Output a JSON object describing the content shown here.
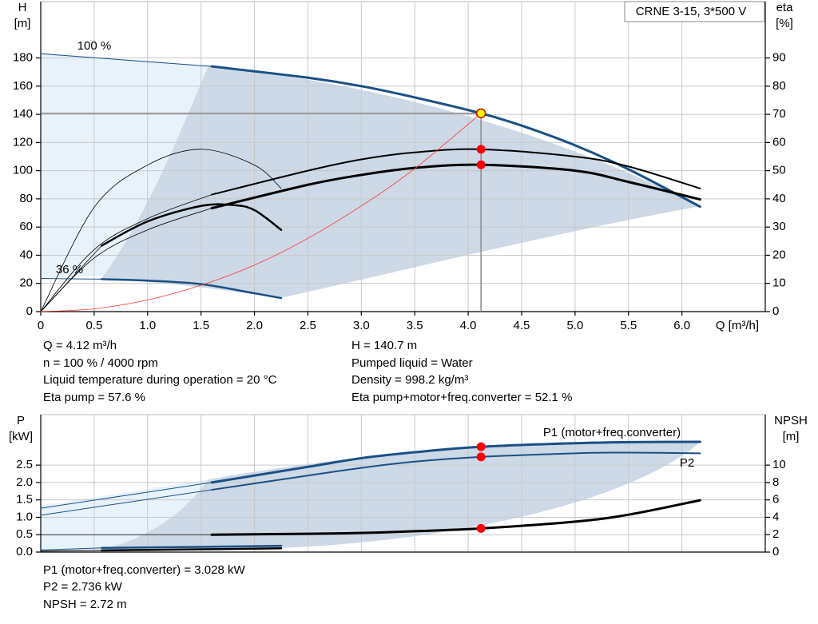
{
  "chart_data": [
    {
      "type": "line",
      "title": "CRNE 3-15, 3*500 V",
      "y_label": "H",
      "y_unit": "[m]",
      "y2_label": "eta",
      "y2_unit": "[%]",
      "x_label": "Q [m³/h]",
      "xlim": [
        0,
        6.78
      ],
      "ylim": [
        0,
        220
      ],
      "y2lim": [
        0,
        110
      ],
      "xticks": [
        0,
        0.5,
        {
          "value": 1,
          "label": "1.0"
        },
        1.5,
        {
          "value": 2,
          "label": "2.0"
        },
        2.5,
        {
          "value": 3,
          "label": "3.0"
        },
        3.5,
        {
          "value": 4,
          "label": "4.0"
        },
        4.5,
        {
          "value": 5,
          "label": "5.0"
        },
        5.5,
        {
          "value": 6,
          "label": "6.0"
        }
      ],
      "yticks": [
        0,
        20,
        40,
        60,
        80,
        100,
        120,
        140,
        160,
        180
      ],
      "y2ticks": [
        0,
        10,
        20,
        30,
        40,
        50,
        60,
        70,
        80,
        90
      ],
      "grid": true,
      "series": [
        {
          "name": "100 %",
          "color": "#1a4f86",
          "width": 1,
          "x": [
            0,
            1.6
          ],
          "values": [
            183,
            174
          ]
        },
        {
          "color": "#1a4f86",
          "width": 3,
          "x": [
            1.6,
            2.5,
            3,
            3.5,
            4.12,
            4.5,
            5,
            5.5,
            6.17
          ],
          "values": [
            174,
            166,
            160,
            152,
            140.7,
            132,
            118,
            101,
            74.5
          ]
        },
        {
          "name": "36 %",
          "color": "#1a4f86",
          "width": 1,
          "x": [
            0,
            0.57
          ],
          "values": [
            23.5,
            23
          ]
        },
        {
          "color": "#1a4f86",
          "width": 2.5,
          "x": [
            0.57,
            1,
            1.5,
            2,
            2.25
          ],
          "values": [
            23,
            22,
            19.5,
            13,
            9.6
          ]
        },
        {
          "color": "#000000",
          "width": 0.8,
          "axis": "y2",
          "x": [
            0,
            0.5,
            1,
            1.6
          ],
          "values": [
            0,
            22,
            33,
            41.5
          ]
        },
        {
          "color": "#000000",
          "width": 2,
          "axis": "y2",
          "x": [
            1.6,
            2.5,
            3,
            3.5,
            4.12,
            5,
            5.5,
            6.17
          ],
          "values": [
            41.5,
            50,
            54,
            56.5,
            57.6,
            55,
            51.5,
            43.7
          ]
        },
        {
          "color": "#000000",
          "width": 0.8,
          "axis": "y2",
          "x": [
            0,
            0.5,
            1,
            1.6
          ],
          "values": [
            0,
            19,
            29,
            36.7
          ]
        },
        {
          "color": "#000000",
          "width": 3,
          "axis": "y2",
          "x": [
            1.6,
            2.5,
            3,
            3.5,
            4.12,
            5,
            5.5,
            6.17
          ],
          "values": [
            36.7,
            45,
            48.5,
            51,
            52.1,
            50,
            46,
            39.8
          ]
        },
        {
          "color": "#000000",
          "width": 0.8,
          "axis": "y2",
          "x": [
            0,
            0.5,
            1,
            1.5,
            2,
            2.25
          ],
          "values": [
            0,
            37,
            52,
            57.6,
            52,
            43.7
          ]
        },
        {
          "color": "#000000",
          "width": 0.8,
          "axis": "y2",
          "x": [
            0,
            0.57
          ],
          "values": [
            0,
            23.4
          ]
        },
        {
          "color": "#000000",
          "width": 2.5,
          "axis": "y2",
          "x": [
            0.57,
            1,
            1.5,
            1.8,
            2,
            2.25
          ],
          "values": [
            23.4,
            32,
            37.5,
            37.8,
            36,
            29
          ]
        },
        {
          "color": "#ff3333",
          "width": 0.8,
          "x": [
            0,
            0.5,
            1,
            1.5,
            2,
            2.5,
            3,
            3.5,
            4.12
          ],
          "values": [
            0,
            2,
            8.3,
            18.7,
            33,
            52,
            75,
            101.5,
            140.7
          ]
        }
      ],
      "duty_point": {
        "x": 4.12,
        "value": 140.7
      },
      "points": [
        {
          "x": 4.12,
          "value": 140.7,
          "color": "#ffff00"
        },
        {
          "x": 4.12,
          "value": 57.6,
          "axis": "y2",
          "color": "#ff0000"
        },
        {
          "x": 4.12,
          "value": 52.1,
          "axis": "y2",
          "color": "#ff0000"
        }
      ],
      "annotations": [
        [
          "Q = 4.12 m³/h",
          "n = 100 % / 4000 rpm",
          "Liquid temperature during operation = 20 °C",
          "Eta pump = 57.6 %"
        ],
        [
          "H = 140.7 m",
          "Pumped liquid = Water",
          "Density = 998.2 kg/m³",
          "Eta pump+motor+freq.converter = 52.1 %"
        ]
      ]
    },
    {
      "type": "line",
      "y_label": "P",
      "y_unit": "[kW]",
      "y2_label": "NPSH",
      "y2_unit": "[m]",
      "xlim": [
        0,
        6.78
      ],
      "ylim": [
        0,
        3.95
      ],
      "y2lim": [
        0,
        15.8
      ],
      "xticks": [
        0,
        0.5,
        1,
        1.5,
        2,
        2.5,
        3,
        3.5,
        4,
        4.5,
        5,
        5.5,
        6
      ],
      "xtick_labels": false,
      "yticks": [
        {
          "value": 0,
          "label": "0.0"
        },
        0.5,
        {
          "value": 1,
          "label": "1.0"
        },
        1.5,
        {
          "value": 2,
          "label": "2.0"
        },
        2.5
      ],
      "y2ticks": [
        0,
        2,
        4,
        6,
        8,
        10
      ],
      "grid": true,
      "series": [
        {
          "color": "#1a4f86",
          "width": 1,
          "x": [
            0,
            1.6
          ],
          "values": [
            1.26,
            2.0
          ]
        },
        {
          "name": "P1 (motor+freq.converter)",
          "color": "#1a4f86",
          "width": 3,
          "x": [
            1.6,
            2.5,
            3,
            3.5,
            4.12,
            5,
            5.5,
            6.17
          ],
          "values": [
            2.0,
            2.45,
            2.7,
            2.87,
            3.028,
            3.13,
            3.16,
            3.17
          ]
        },
        {
          "color": "#1a4f86",
          "width": 1,
          "x": [
            0,
            1.6
          ],
          "values": [
            1.06,
            1.79
          ]
        },
        {
          "name": "P2",
          "color": "#1a4f86",
          "width": 2,
          "x": [
            1.6,
            2.5,
            3,
            3.5,
            4.12,
            5,
            5.5,
            6.17
          ],
          "values": [
            1.79,
            2.2,
            2.42,
            2.6,
            2.736,
            2.84,
            2.86,
            2.84
          ]
        },
        {
          "color": "#1a4f86",
          "width": 1,
          "x": [
            0,
            0.57
          ],
          "values": [
            0.06,
            0.12
          ]
        },
        {
          "color": "#1a4f86",
          "width": 2.5,
          "x": [
            0.57,
            1.5,
            2.25
          ],
          "values": [
            0.12,
            0.15,
            0.18
          ]
        },
        {
          "color": "#000000",
          "width": 1,
          "x": [
            0,
            0.57
          ],
          "values": [
            0.03,
            0.05
          ]
        },
        {
          "color": "#000000",
          "width": 2.5,
          "x": [
            0.57,
            1.5,
            2.25
          ],
          "values": [
            0.05,
            0.08,
            0.11
          ]
        },
        {
          "color": "#000000",
          "width": 0.8,
          "axis": "y2",
          "x": [
            0,
            1.6
          ],
          "values": [
            2.0,
            2.0
          ]
        },
        {
          "color": "#000000",
          "width": 3,
          "axis": "y2",
          "x": [
            1.6,
            2.5,
            3,
            3.5,
            4.12,
            5,
            5.5,
            6.17
          ],
          "values": [
            2.0,
            2.1,
            2.2,
            2.4,
            2.72,
            3.5,
            4.3,
            5.96
          ]
        }
      ],
      "points": [
        {
          "x": 4.12,
          "value": 3.028,
          "color": "#ff0000"
        },
        {
          "x": 4.12,
          "value": 2.736,
          "color": "#ff0000"
        },
        {
          "x": 4.12,
          "value": 2.72,
          "axis": "y2",
          "color": "#ff0000"
        }
      ],
      "annotations": [
        [
          "P1 (motor+freq.converter) = 3.028 kW",
          "P2 = 2.736 kW",
          "NPSH = 2.72 m"
        ]
      ]
    }
  ]
}
